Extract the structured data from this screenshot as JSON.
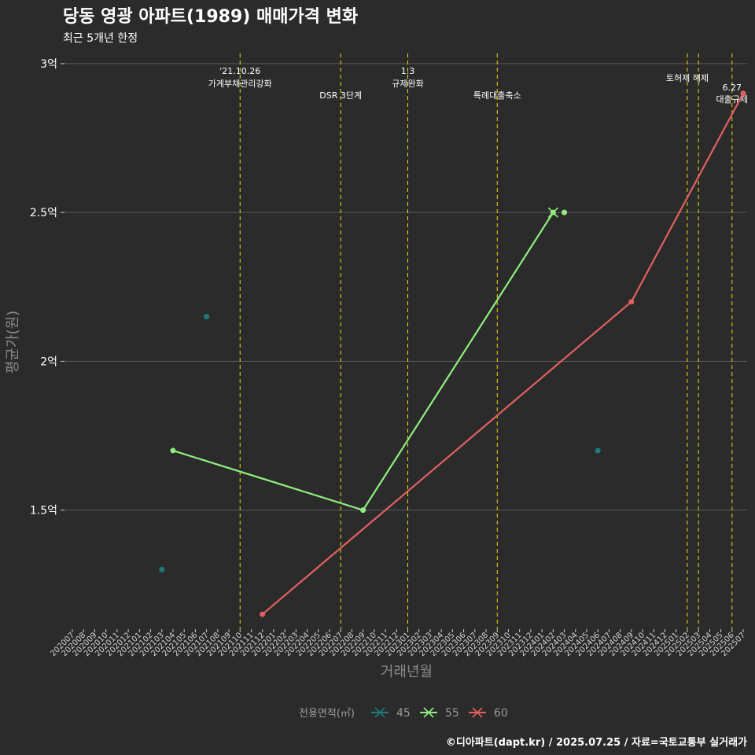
{
  "chart_data": {
    "type": "line",
    "title": "당동 영광 아파트(1989) 매매가격 변화",
    "subtitle": "최근 5개년 한정",
    "xlabel": "거래년월",
    "ylabel": "평균가(원)",
    "caption": "©디아파트(dapt.kr) / 2025.07.25 / 자료=국토교통부 실거래가",
    "categories": [
      "202007",
      "202008",
      "202009",
      "202010",
      "202011",
      "202012",
      "202101",
      "202102",
      "202103",
      "202104",
      "202105",
      "202106",
      "202107",
      "202108",
      "202109",
      "202110",
      "202111",
      "202112",
      "202201",
      "202202",
      "202203",
      "202204",
      "202205",
      "202206",
      "202207",
      "202208",
      "202209",
      "202210",
      "202211",
      "202212",
      "202301",
      "202302",
      "202303",
      "202304",
      "202305",
      "202306",
      "202307",
      "202308",
      "202309",
      "202310",
      "202311",
      "202312",
      "202401",
      "202402",
      "202403",
      "202404",
      "202405",
      "202406",
      "202407",
      "202408",
      "202409",
      "202410",
      "202411",
      "202412",
      "202501",
      "202502",
      "202503",
      "202504",
      "202505",
      "202506",
      "202507"
    ],
    "y_ticks": [
      {
        "value": 1.5,
        "label": "1.5억"
      },
      {
        "value": 2.0,
        "label": "2억"
      },
      {
        "value": 2.5,
        "label": "2.5억"
      },
      {
        "value": 3.0,
        "label": "3억"
      }
    ],
    "ylim": [
      1.1,
      3.05
    ],
    "grid": true,
    "legend_placement": "bottom",
    "legend_title": "전용면적(㎡)",
    "series": [
      {
        "name": "45",
        "color": "#1f7a7a",
        "points": [
          {
            "x": "202103",
            "y": 1.3
          },
          {
            "x": "202107",
            "y": 2.15
          },
          {
            "x": "202406",
            "y": 1.7
          }
        ],
        "line_segments": []
      },
      {
        "name": "55",
        "color": "#90ee7f",
        "points": [
          {
            "x": "202104",
            "y": 1.7
          },
          {
            "x": "202209",
            "y": 1.5
          },
          {
            "x": "202402",
            "y": 2.5
          },
          {
            "x": "202403",
            "y": 2.5
          }
        ],
        "line_segments": [
          [
            {
              "x": "202104",
              "y": 1.7
            },
            {
              "x": "202209",
              "y": 1.5
            },
            {
              "x": "202402",
              "y": 2.5
            }
          ]
        ]
      },
      {
        "name": "60",
        "color": "#e06060",
        "points": [
          {
            "x": "202112",
            "y": 1.15
          },
          {
            "x": "202409",
            "y": 2.2
          },
          {
            "x": "202507",
            "y": 2.9
          }
        ],
        "line_segments": [
          [
            {
              "x": "202112",
              "y": 1.15
            },
            {
              "x": "202409",
              "y": 2.2
            },
            {
              "x": "202507",
              "y": 2.9
            }
          ]
        ]
      }
    ],
    "cross_markers": [
      {
        "series": "55",
        "x": "202402",
        "y": 2.5
      }
    ],
    "events": [
      {
        "x": "202110",
        "lines": [
          "'21.10.26",
          "가계부채관리강화"
        ]
      },
      {
        "x": "202207",
        "lines": [
          "DSR 3단계"
        ]
      },
      {
        "x": "202301",
        "lines": [
          "1.3",
          "규제완화"
        ]
      },
      {
        "x": "202309",
        "lines": [
          "특례대출축소"
        ]
      },
      {
        "x": "202502",
        "lines": [
          "토허제 해제"
        ]
      },
      {
        "x": "202503",
        "lines": []
      },
      {
        "x": "202506",
        "lines": [
          "6.27",
          "대출규제"
        ]
      }
    ]
  }
}
